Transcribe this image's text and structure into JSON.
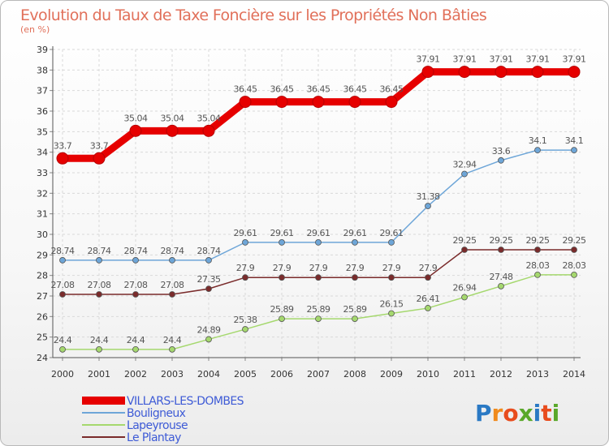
{
  "chart_data": {
    "type": "line",
    "title": "Evolution du Taux de Taxe Foncière sur les Propriétés Non Bâties",
    "subtitle": "(en %)",
    "x": [
      2000,
      2001,
      2002,
      2003,
      2004,
      2005,
      2006,
      2007,
      2008,
      2009,
      2010,
      2011,
      2012,
      2013,
      2014
    ],
    "ylim": [
      24,
      39
    ],
    "yticks": [
      24,
      25,
      26,
      27,
      28,
      29,
      30,
      31,
      32,
      33,
      34,
      35,
      36,
      37,
      38,
      39
    ],
    "grid": true,
    "series": [
      {
        "name": "VILLARS-LES-DOMBES",
        "color": "#e60000",
        "values": [
          33.7,
          33.7,
          35.04,
          35.04,
          35.04,
          36.45,
          36.45,
          36.45,
          36.45,
          36.45,
          37.91,
          37.91,
          37.91,
          37.91,
          37.91
        ]
      },
      {
        "name": "Bouligneux",
        "color": "#6ea6d8",
        "values": [
          28.74,
          28.74,
          28.74,
          28.74,
          28.74,
          29.61,
          29.61,
          29.61,
          29.61,
          29.61,
          31.38,
          32.94,
          33.6,
          34.1,
          34.1
        ]
      },
      {
        "name": "Lapeyrouse",
        "color": "#a5d86e",
        "values": [
          24.4,
          24.4,
          24.4,
          24.4,
          24.89,
          25.38,
          25.89,
          25.89,
          25.89,
          26.15,
          26.41,
          26.94,
          27.48,
          28.03,
          28.03
        ]
      },
      {
        "name": "Le Plantay",
        "color": "#7a2b2b",
        "values": [
          27.08,
          27.08,
          27.08,
          27.08,
          27.35,
          27.9,
          27.9,
          27.9,
          27.9,
          27.9,
          27.9,
          29.25,
          29.25,
          29.25,
          29.25
        ]
      }
    ],
    "legend_placement": "bottom-left",
    "legend_text_color": "#3e5bd6"
  },
  "brand": {
    "name": "Proxiti",
    "letters": [
      "P",
      "r",
      "o",
      "x",
      "i",
      "t",
      "i"
    ],
    "colors": [
      "#2a79c4",
      "#f08a1c",
      "#e84c1d",
      "#5aa82a",
      "#2a79c4",
      "#e84c1d",
      "#5aa82a"
    ]
  }
}
